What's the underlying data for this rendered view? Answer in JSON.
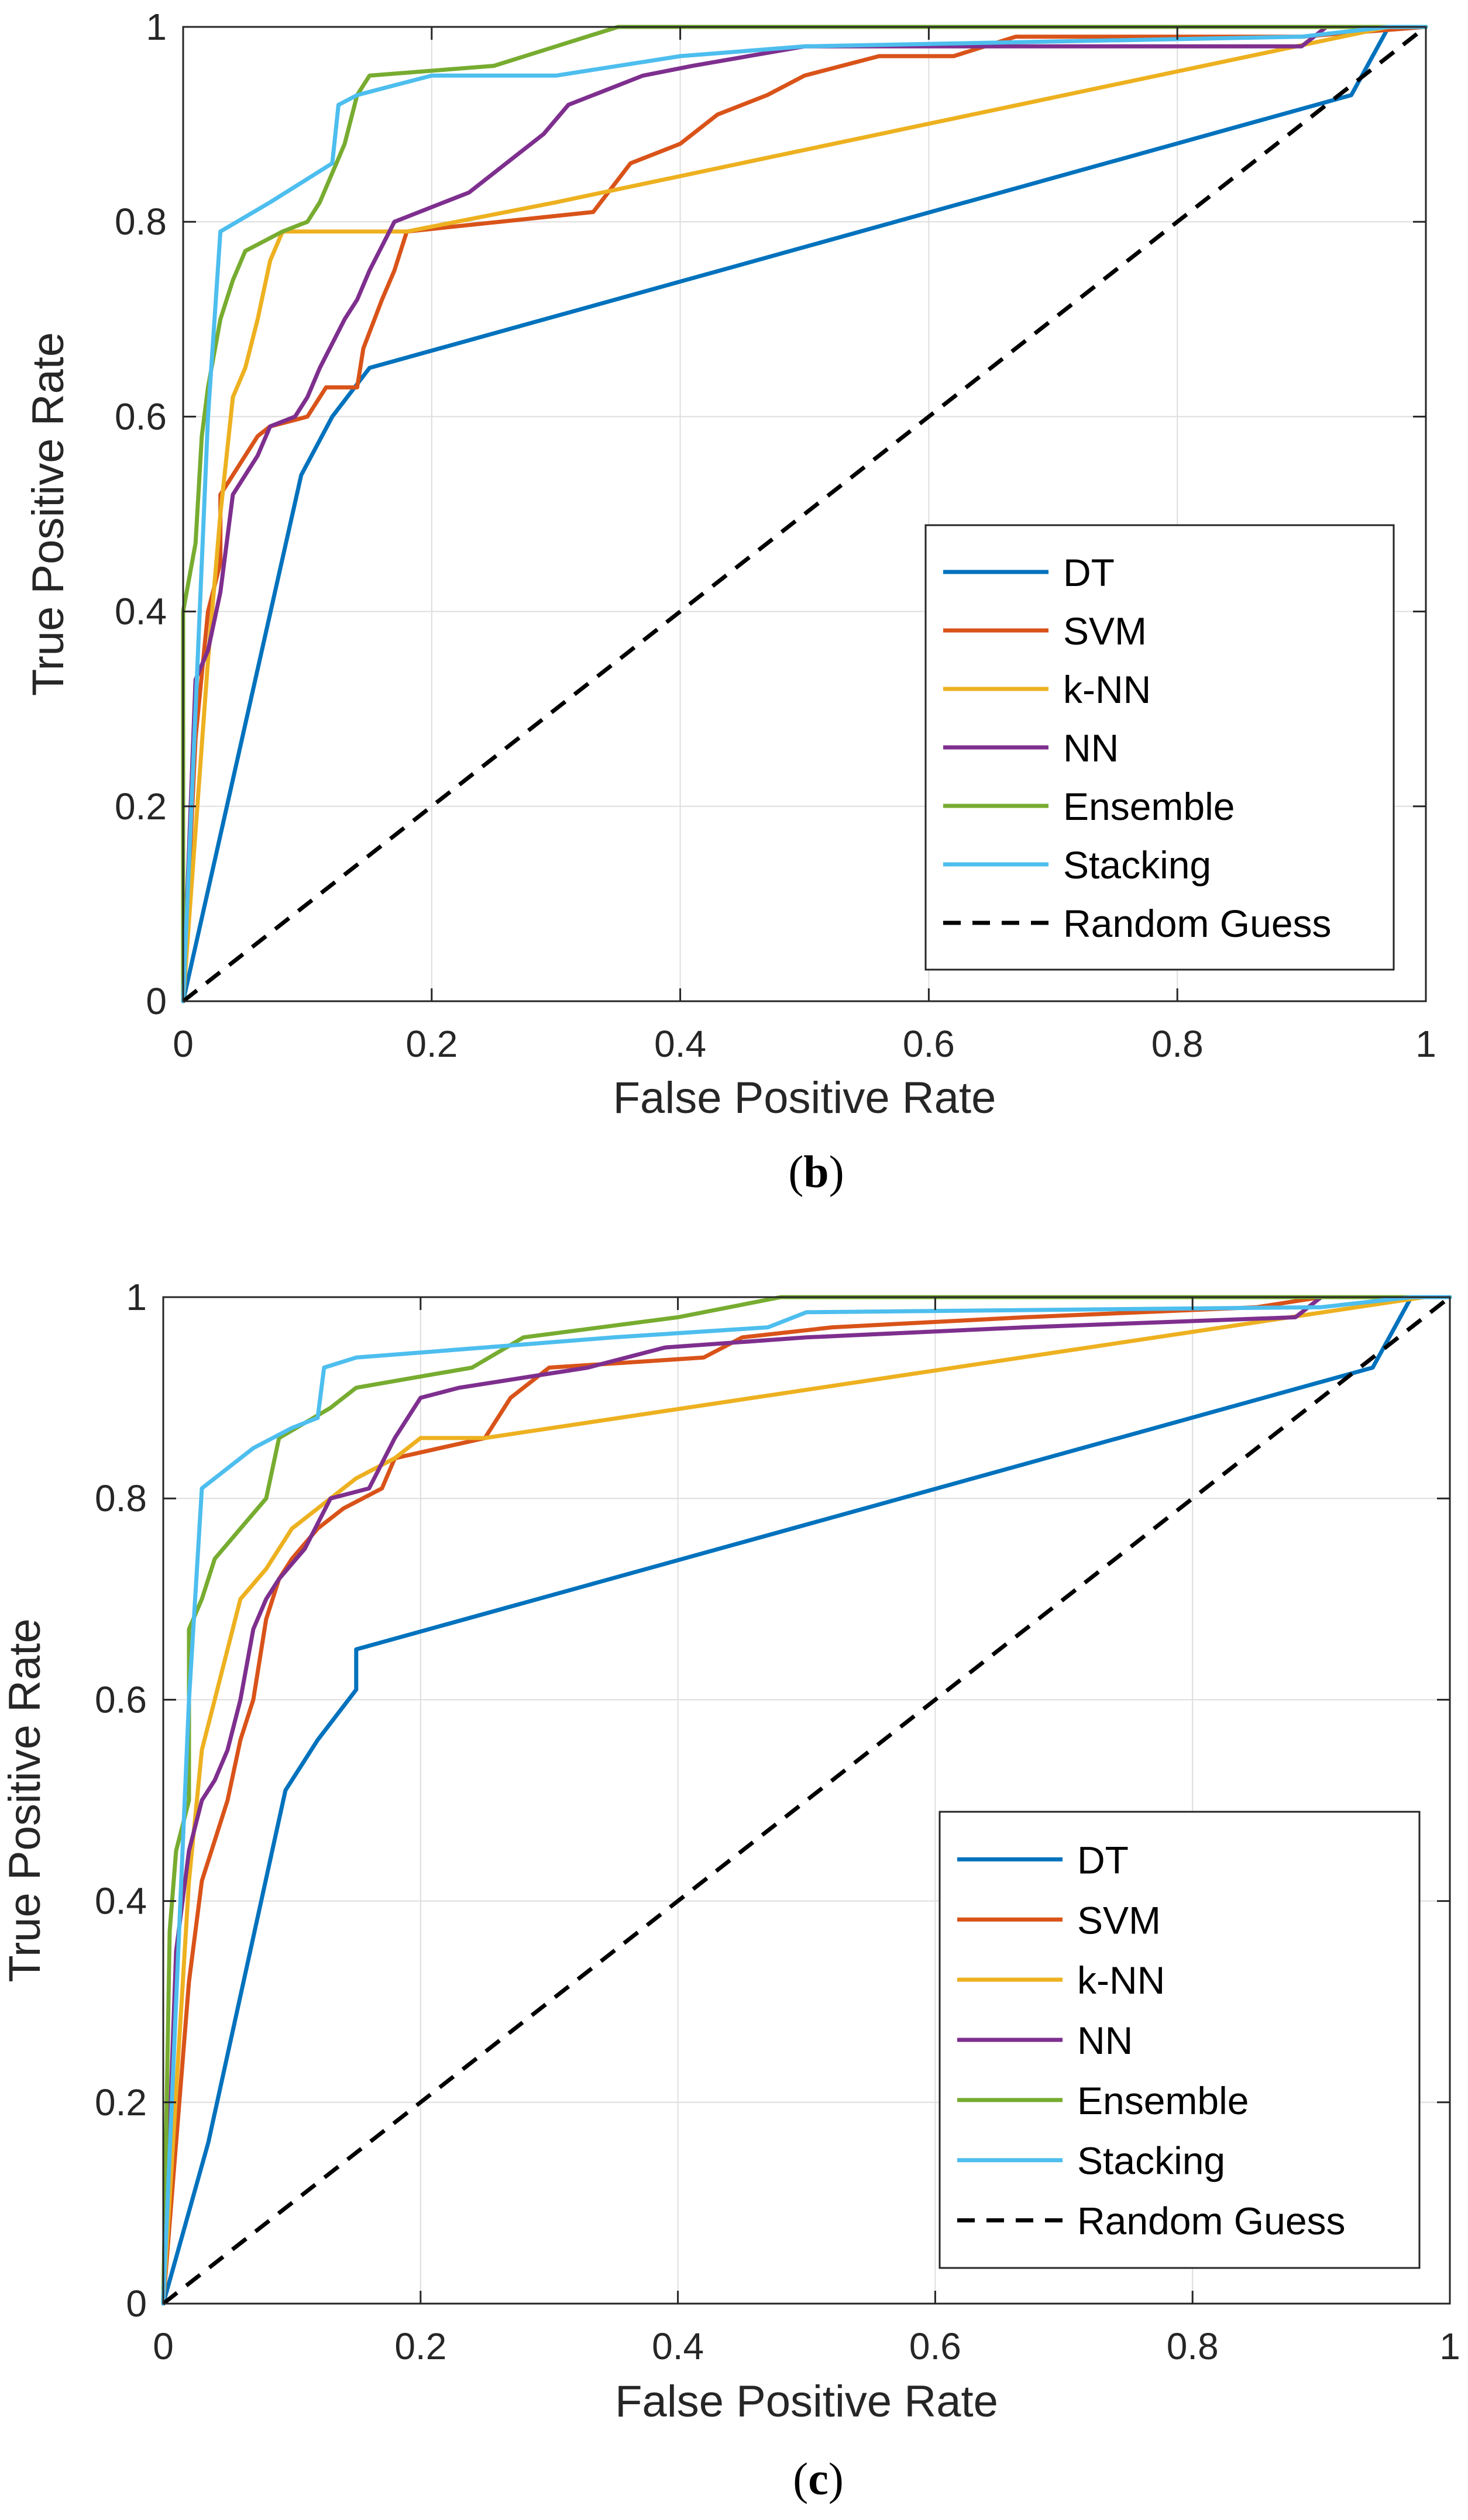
{
  "chart_data": [
    {
      "type": "line",
      "xlabel": "False Positive Rate",
      "ylabel": "True Positive Rate",
      "caption": {
        "open": "(",
        "letter": "b",
        "close": ")"
      },
      "xlim": [
        0,
        1
      ],
      "ylim": [
        0,
        1
      ],
      "grid": true,
      "xticks": [
        "0",
        "0.2",
        "0.4",
        "0.6",
        "0.8",
        "1"
      ],
      "yticks": [
        "0",
        "0.2",
        "0.4",
        "0.6",
        "0.8",
        "1"
      ],
      "legend_position": "bottom-right",
      "series": [
        {
          "name": "DT",
          "color": "#0072BD",
          "dashed": false,
          "points": [
            [
              0,
              0
            ],
            [
              0.095,
              0.54
            ],
            [
              0.12,
              0.6
            ],
            [
              0.15,
              0.65
            ],
            [
              0.94,
              0.93
            ],
            [
              0.97,
              1
            ],
            [
              1,
              1
            ]
          ]
        },
        {
          "name": "SVM",
          "color": "#D95319",
          "dashed": false,
          "points": [
            [
              0,
              0
            ],
            [
              0.01,
              0.27
            ],
            [
              0.02,
              0.4
            ],
            [
              0.03,
              0.45
            ],
            [
              0.03,
              0.52
            ],
            [
              0.05,
              0.56
            ],
            [
              0.06,
              0.58
            ],
            [
              0.07,
              0.59
            ],
            [
              0.1,
              0.6
            ],
            [
              0.115,
              0.63
            ],
            [
              0.14,
              0.63
            ],
            [
              0.145,
              0.67
            ],
            [
              0.16,
              0.72
            ],
            [
              0.17,
              0.75
            ],
            [
              0.18,
              0.79
            ],
            [
              0.33,
              0.81
            ],
            [
              0.36,
              0.86
            ],
            [
              0.4,
              0.88
            ],
            [
              0.43,
              0.91
            ],
            [
              0.47,
              0.93
            ],
            [
              0.5,
              0.95
            ],
            [
              0.56,
              0.97
            ],
            [
              0.62,
              0.97
            ],
            [
              0.67,
              0.99
            ],
            [
              0.9,
              0.99
            ],
            [
              1,
              1
            ]
          ]
        },
        {
          "name": "k-NN",
          "color": "#EDB120",
          "dashed": false,
          "points": [
            [
              0,
              0
            ],
            [
              0.02,
              0.35
            ],
            [
              0.03,
              0.5
            ],
            [
              0.04,
              0.62
            ],
            [
              0.05,
              0.65
            ],
            [
              0.06,
              0.7
            ],
            [
              0.07,
              0.76
            ],
            [
              0.08,
              0.79
            ],
            [
              0.18,
              0.79
            ],
            [
              0.3,
              0.82
            ],
            [
              0.97,
              1
            ],
            [
              1,
              1
            ]
          ]
        },
        {
          "name": "NN",
          "color": "#7E2F8E",
          "dashed": false,
          "points": [
            [
              0,
              0
            ],
            [
              0.01,
              0.33
            ],
            [
              0.02,
              0.36
            ],
            [
              0.03,
              0.42
            ],
            [
              0.04,
              0.52
            ],
            [
              0.05,
              0.54
            ],
            [
              0.06,
              0.56
            ],
            [
              0.07,
              0.59
            ],
            [
              0.09,
              0.6
            ],
            [
              0.1,
              0.62
            ],
            [
              0.11,
              0.65
            ],
            [
              0.13,
              0.7
            ],
            [
              0.14,
              0.72
            ],
            [
              0.15,
              0.75
            ],
            [
              0.17,
              0.8
            ],
            [
              0.19,
              0.81
            ],
            [
              0.23,
              0.83
            ],
            [
              0.26,
              0.86
            ],
            [
              0.29,
              0.89
            ],
            [
              0.31,
              0.92
            ],
            [
              0.37,
              0.95
            ],
            [
              0.41,
              0.96
            ],
            [
              0.5,
              0.98
            ],
            [
              0.9,
              0.98
            ],
            [
              0.92,
              1
            ],
            [
              1,
              1
            ]
          ]
        },
        {
          "name": "Ensemble",
          "color": "#77AC30",
          "dashed": false,
          "points": [
            [
              0,
              0
            ],
            [
              0,
              0.4
            ],
            [
              0.01,
              0.47
            ],
            [
              0.015,
              0.58
            ],
            [
              0.02,
              0.63
            ],
            [
              0.03,
              0.7
            ],
            [
              0.04,
              0.74
            ],
            [
              0.05,
              0.77
            ],
            [
              0.08,
              0.79
            ],
            [
              0.1,
              0.8
            ],
            [
              0.11,
              0.82
            ],
            [
              0.13,
              0.88
            ],
            [
              0.14,
              0.93
            ],
            [
              0.15,
              0.95
            ],
            [
              0.25,
              0.96
            ],
            [
              0.3,
              0.98
            ],
            [
              0.35,
              1
            ],
            [
              1,
              1
            ]
          ]
        },
        {
          "name": "Stacking",
          "color": "#4DBEEE",
          "dashed": false,
          "points": [
            [
              0,
              0
            ],
            [
              0.02,
              0.6
            ],
            [
              0.03,
              0.79
            ],
            [
              0.07,
              0.82
            ],
            [
              0.12,
              0.86
            ],
            [
              0.125,
              0.92
            ],
            [
              0.14,
              0.93
            ],
            [
              0.2,
              0.95
            ],
            [
              0.3,
              0.95
            ],
            [
              0.4,
              0.97
            ],
            [
              0.5,
              0.98
            ],
            [
              0.9,
              0.99
            ],
            [
              0.97,
              1
            ],
            [
              1,
              1
            ]
          ]
        },
        {
          "name": "Random Guess",
          "color": "#000000",
          "dashed": true,
          "points": [
            [
              0,
              0
            ],
            [
              1,
              1
            ]
          ]
        }
      ]
    },
    {
      "type": "line",
      "xlabel": "False Positive Rate",
      "ylabel": "True Positive Rate",
      "caption": {
        "open": "(",
        "letter": "c",
        "close": ")"
      },
      "xlim": [
        0,
        1
      ],
      "ylim": [
        0,
        1
      ],
      "grid": true,
      "xticks": [
        "0",
        "0.2",
        "0.4",
        "0.6",
        "0.8",
        "1"
      ],
      "yticks": [
        "0",
        "0.2",
        "0.4",
        "0.6",
        "0.8",
        "1"
      ],
      "legend_position": "bottom-right",
      "series": [
        {
          "name": "DT",
          "color": "#0072BD",
          "dashed": false,
          "points": [
            [
              0,
              0
            ],
            [
              0.035,
              0.16
            ],
            [
              0.095,
              0.51
            ],
            [
              0.12,
              0.56
            ],
            [
              0.15,
              0.61
            ],
            [
              0.15,
              0.65
            ],
            [
              0.94,
              0.93
            ],
            [
              0.97,
              1
            ],
            [
              1,
              1
            ]
          ]
        },
        {
          "name": "SVM",
          "color": "#D95319",
          "dashed": false,
          "points": [
            [
              0,
              0
            ],
            [
              0.02,
              0.32
            ],
            [
              0.03,
              0.42
            ],
            [
              0.04,
              0.46
            ],
            [
              0.05,
              0.5
            ],
            [
              0.06,
              0.56
            ],
            [
              0.07,
              0.6
            ],
            [
              0.08,
              0.68
            ],
            [
              0.09,
              0.72
            ],
            [
              0.1,
              0.74
            ],
            [
              0.12,
              0.77
            ],
            [
              0.14,
              0.79
            ],
            [
              0.17,
              0.81
            ],
            [
              0.18,
              0.84
            ],
            [
              0.25,
              0.86
            ],
            [
              0.27,
              0.9
            ],
            [
              0.3,
              0.93
            ],
            [
              0.42,
              0.94
            ],
            [
              0.45,
              0.96
            ],
            [
              0.52,
              0.97
            ],
            [
              0.67,
              0.98
            ],
            [
              0.85,
              0.99
            ],
            [
              0.9,
              1
            ],
            [
              1,
              1
            ]
          ]
        },
        {
          "name": "k-NN",
          "color": "#EDB120",
          "dashed": false,
          "points": [
            [
              0,
              0
            ],
            [
              0.02,
              0.42
            ],
            [
              0.03,
              0.55
            ],
            [
              0.04,
              0.6
            ],
            [
              0.05,
              0.65
            ],
            [
              0.06,
              0.7
            ],
            [
              0.08,
              0.73
            ],
            [
              0.1,
              0.77
            ],
            [
              0.12,
              0.79
            ],
            [
              0.15,
              0.82
            ],
            [
              0.18,
              0.84
            ],
            [
              0.2,
              0.86
            ],
            [
              0.25,
              0.86
            ],
            [
              0.98,
              1
            ],
            [
              1,
              1
            ]
          ]
        },
        {
          "name": "NN",
          "color": "#7E2F8E",
          "dashed": false,
          "points": [
            [
              0,
              0
            ],
            [
              0.01,
              0.35
            ],
            [
              0.02,
              0.45
            ],
            [
              0.03,
              0.5
            ],
            [
              0.04,
              0.52
            ],
            [
              0.05,
              0.55
            ],
            [
              0.06,
              0.6
            ],
            [
              0.07,
              0.67
            ],
            [
              0.08,
              0.7
            ],
            [
              0.09,
              0.72
            ],
            [
              0.11,
              0.75
            ],
            [
              0.13,
              0.8
            ],
            [
              0.16,
              0.81
            ],
            [
              0.18,
              0.86
            ],
            [
              0.2,
              0.9
            ],
            [
              0.23,
              0.91
            ],
            [
              0.33,
              0.93
            ],
            [
              0.39,
              0.95
            ],
            [
              0.5,
              0.96
            ],
            [
              0.67,
              0.97
            ],
            [
              0.88,
              0.98
            ],
            [
              0.9,
              1
            ],
            [
              1,
              1
            ]
          ]
        },
        {
          "name": "Ensemble",
          "color": "#77AC30",
          "dashed": false,
          "points": [
            [
              0,
              0
            ],
            [
              0.005,
              0.37
            ],
            [
              0.01,
              0.45
            ],
            [
              0.02,
              0.5
            ],
            [
              0.02,
              0.67
            ],
            [
              0.03,
              0.7
            ],
            [
              0.04,
              0.74
            ],
            [
              0.06,
              0.77
            ],
            [
              0.08,
              0.8
            ],
            [
              0.09,
              0.86
            ],
            [
              0.13,
              0.89
            ],
            [
              0.15,
              0.91
            ],
            [
              0.24,
              0.93
            ],
            [
              0.28,
              0.96
            ],
            [
              0.4,
              0.98
            ],
            [
              0.48,
              1
            ],
            [
              1,
              1
            ]
          ]
        },
        {
          "name": "Stacking",
          "color": "#4DBEEE",
          "dashed": false,
          "points": [
            [
              0,
              0
            ],
            [
              0.02,
              0.6
            ],
            [
              0.03,
              0.81
            ],
            [
              0.07,
              0.85
            ],
            [
              0.1,
              0.87
            ],
            [
              0.12,
              0.88
            ],
            [
              0.125,
              0.93
            ],
            [
              0.15,
              0.94
            ],
            [
              0.2,
              0.945
            ],
            [
              0.35,
              0.96
            ],
            [
              0.47,
              0.97
            ],
            [
              0.5,
              0.985
            ],
            [
              0.9,
              0.99
            ],
            [
              0.97,
              1
            ],
            [
              1,
              1
            ]
          ]
        },
        {
          "name": "Random Guess",
          "color": "#000000",
          "dashed": true,
          "points": [
            [
              0,
              0
            ],
            [
              1,
              1
            ]
          ]
        }
      ]
    }
  ]
}
